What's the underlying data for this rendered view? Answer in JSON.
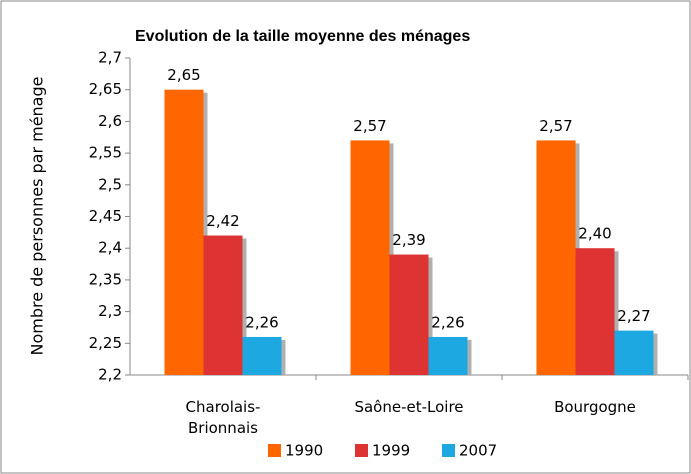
{
  "chart_data": {
    "type": "bar",
    "title": "Evolution de la taille moyenne des ménages",
    "y_label": "Nombre de personnes par ménage",
    "categories": [
      "Charolais-\nBrionnais",
      "Saône-et-Loire",
      "Bourgogne"
    ],
    "series": [
      {
        "name": "1990",
        "color": "#ff6600",
        "values": [
          2.65,
          2.57,
          2.57
        ],
        "value_labels": [
          "2,65",
          "2,57",
          "2,57"
        ]
      },
      {
        "name": "1999",
        "color": "#dd3333",
        "values": [
          2.42,
          2.39,
          2.4
        ],
        "value_labels": [
          "2,42",
          "2,39",
          "2,40"
        ]
      },
      {
        "name": "2007",
        "color": "#1ea8e2",
        "values": [
          2.26,
          2.26,
          2.27
        ],
        "value_labels": [
          "2,26",
          "2,26",
          "2,27"
        ]
      }
    ],
    "ylim": [
      2.2,
      2.7
    ],
    "yticks": [
      {
        "value": 2.2,
        "label": "2,2"
      },
      {
        "value": 2.25,
        "label": "2,25"
      },
      {
        "value": 2.3,
        "label": "2,3"
      },
      {
        "value": 2.35,
        "label": "2,35"
      },
      {
        "value": 2.4,
        "label": "2,4"
      },
      {
        "value": 2.45,
        "label": "2,45"
      },
      {
        "value": 2.5,
        "label": "2,5"
      },
      {
        "value": 2.55,
        "label": "2,55"
      },
      {
        "value": 2.6,
        "label": "2,6"
      },
      {
        "value": 2.65,
        "label": "2,65"
      },
      {
        "value": 2.7,
        "label": "2,7"
      }
    ],
    "grid": false,
    "legend": "bottom"
  }
}
